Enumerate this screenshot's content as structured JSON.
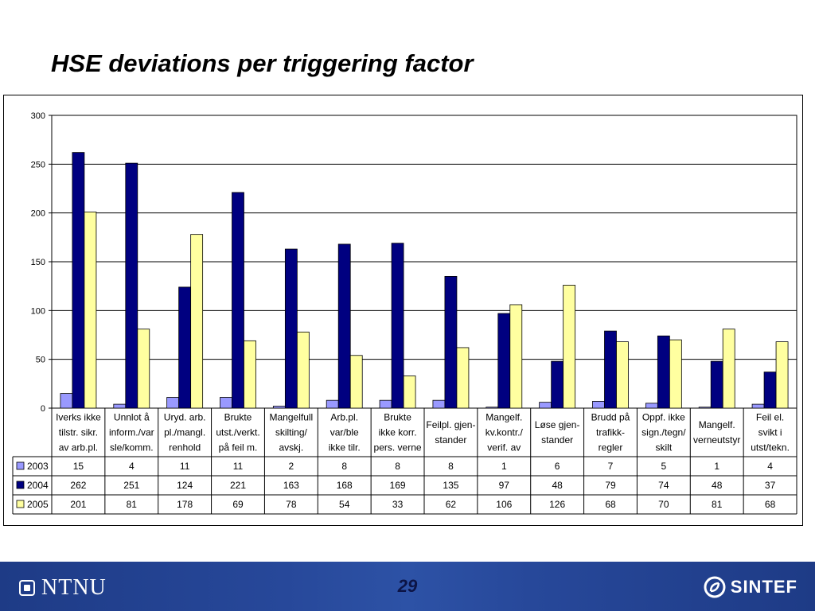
{
  "slide": {
    "title": "HSE deviations per triggering factor",
    "page_number": "29"
  },
  "footer": {
    "left_logo_text": "NTNU",
    "right_logo_text": "SINTEF",
    "left_logo_icon": "ntnu-logo-icon",
    "right_logo_icon": "sintef-logo-icon"
  },
  "chart_data": {
    "type": "bar",
    "ylim": [
      0,
      300
    ],
    "yticks": [
      0,
      50,
      100,
      150,
      200,
      250,
      300
    ],
    "grid": true,
    "legend_placement": "data-table-left",
    "categories": [
      [
        "Iverks ikke",
        "tilstr. sikr.",
        "av arb.pl."
      ],
      [
        "Unnlot å",
        "inform./var",
        "sle/komm."
      ],
      [
        "Uryd. arb.",
        "pl./mangl.",
        "renhold"
      ],
      [
        "Brukte",
        "utst./verkt.",
        "på feil m."
      ],
      [
        "Mangelfull",
        "skilting/",
        "avskj."
      ],
      [
        "Arb.pl.",
        "var/ble",
        "ikke tilr."
      ],
      [
        "Brukte",
        "ikke korr.",
        "pers. verne"
      ],
      [
        "Feilpl. gjen-",
        "stander"
      ],
      [
        "Mangelf.",
        "kv.kontr./",
        "verif. av"
      ],
      [
        "Løse gjen-",
        "stander"
      ],
      [
        "Brudd på",
        "trafikk-",
        "regler"
      ],
      [
        "Oppf. ikke",
        "sign./tegn/",
        "skilt"
      ],
      [
        "Mangelf.",
        "verneutstyr"
      ],
      [
        "Feil el.",
        "svikt i",
        "utst/tekn."
      ]
    ],
    "series": [
      {
        "name": "2003",
        "color": "#9999ff",
        "values": [
          15,
          4,
          11,
          11,
          2,
          8,
          8,
          8,
          1,
          6,
          7,
          5,
          1,
          4
        ]
      },
      {
        "name": "2004",
        "color": "#000080",
        "values": [
          262,
          251,
          124,
          221,
          163,
          168,
          169,
          135,
          97,
          48,
          79,
          74,
          48,
          37
        ]
      },
      {
        "name": "2005",
        "color": "#ffffa0",
        "values": [
          201,
          81,
          178,
          69,
          78,
          54,
          33,
          62,
          106,
          126,
          68,
          70,
          81,
          68
        ]
      }
    ]
  }
}
